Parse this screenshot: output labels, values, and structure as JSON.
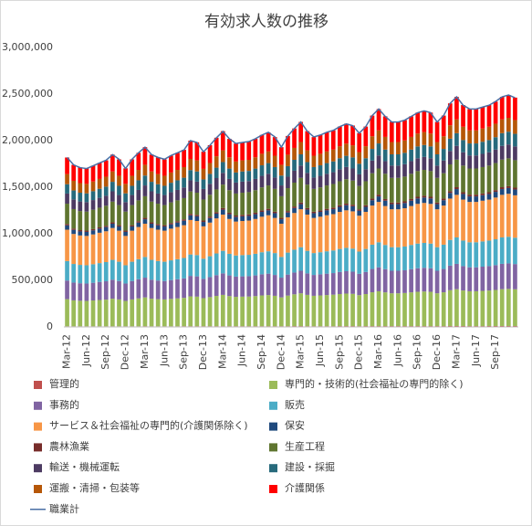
{
  "chart_data": {
    "type": "bar",
    "stacked": true,
    "title": "有効求人数の推移",
    "categories": [
      "Mar-12",
      null,
      null,
      "Jun-12",
      null,
      null,
      "Sep-12",
      null,
      null,
      "Dec-12",
      null,
      null,
      "Mar-13",
      null,
      null,
      "Jun-13",
      null,
      null,
      "Sep-13",
      null,
      null,
      "Dec-13",
      null,
      null,
      "Mar-14",
      null,
      null,
      "Jun-14",
      null,
      null,
      "Sep-14",
      null,
      null,
      "Dec-14",
      null,
      null,
      "Mar-15",
      null,
      null,
      "Jun-15",
      null,
      null,
      "Sep-15",
      null,
      null,
      "Dec-15",
      null,
      null,
      "Mar-16",
      null,
      null,
      "Jun-16",
      null,
      null,
      "Sep-16",
      null,
      null,
      "Dec-16",
      null,
      null,
      "Mar-17",
      null,
      null,
      "Jun-17",
      null,
      null,
      "Sep-17",
      null,
      null,
      null
    ],
    "ylim": [
      0,
      3000000
    ],
    "yticks": [
      {
        "value": 0,
        "label": "0"
      },
      {
        "value": 500000,
        "label": "500,000"
      },
      {
        "value": 1000000,
        "label": "1,000,000"
      },
      {
        "value": 1500000,
        "label": "1,500,000"
      },
      {
        "value": 2000000,
        "label": "2,000,000"
      },
      {
        "value": 2500000,
        "label": "2,500,000"
      },
      {
        "value": 3000000,
        "label": "3,000,000"
      }
    ],
    "grid": false,
    "series": [
      {
        "name": "管理的",
        "color": "#c0504d",
        "values": [
          7000,
          7000,
          7000,
          7000,
          7000,
          7000,
          7000,
          7000,
          7000,
          7000,
          7000,
          7000,
          8000,
          7000,
          7000,
          7000,
          7000,
          7000,
          8000,
          8000,
          8000,
          8000,
          8000,
          8000,
          8000,
          8000,
          8000,
          8000,
          8000,
          8000,
          8000,
          8000,
          8000,
          8000,
          8000,
          9000,
          9000,
          8000,
          8000,
          8000,
          8000,
          8000,
          9000,
          9000,
          9000,
          8000,
          9000,
          9000,
          9000,
          9000,
          9000,
          9000,
          9000,
          9000,
          9000,
          9000,
          9000,
          9000,
          9000,
          10000,
          10000,
          10000,
          9000,
          9000,
          9000,
          10000,
          10000,
          10000,
          10000,
          10000
        ]
      },
      {
        "name": "専門的・技術的(社会福祉の専門的除く)",
        "color": "#9bbb59",
        "values": [
          291000,
          278000,
          274000,
          272000,
          277000,
          282000,
          286000,
          296000,
          288000,
          272000,
          288000,
          299000,
          309000,
          296000,
          291000,
          288000,
          294000,
          299000,
          304000,
          320000,
          317000,
          301000,
          312000,
          325000,
          336000,
          323000,
          315000,
          317000,
          318000,
          323000,
          330000,
          334000,
          326000,
          309000,
          328000,
          341000,
          352000,
          336000,
          326000,
          330000,
          334000,
          338000,
          344000,
          349000,
          346000,
          333000,
          344000,
          363000,
          374000,
          362000,
          352000,
          352000,
          355000,
          362000,
          368000,
          371000,
          368000,
          352000,
          363000,
          384000,
          395000,
          381000,
          374000,
          374000,
          378000,
          381000,
          387000,
          395000,
          398000,
          394000
        ]
      },
      {
        "name": "事務的",
        "color": "#8064a2",
        "values": [
          200000,
          191000,
          188000,
          187000,
          190000,
          194000,
          197000,
          204000,
          198000,
          187000,
          198000,
          206000,
          212000,
          204000,
          200000,
          198000,
          202000,
          206000,
          209000,
          220000,
          218000,
          207000,
          215000,
          223000,
          231000,
          222000,
          217000,
          218000,
          219000,
          222000,
          227000,
          230000,
          224000,
          212000,
          226000,
          234000,
          242000,
          231000,
          224000,
          227000,
          230000,
          232000,
          237000,
          240000,
          238000,
          229000,
          237000,
          250000,
          257000,
          249000,
          242000,
          242000,
          244000,
          249000,
          253000,
          255000,
          253000,
          242000,
          250000,
          264000,
          272000,
          262000,
          257000,
          257000,
          260000,
          262000,
          266000,
          272000,
          274000,
          271000
        ]
      },
      {
        "name": "販売",
        "color": "#4bacc6",
        "values": [
          209000,
          200000,
          197000,
          196000,
          199000,
          202000,
          206000,
          213000,
          207000,
          196000,
          207000,
          215000,
          222000,
          213000,
          209000,
          207000,
          212000,
          215000,
          219000,
          230000,
          228000,
          216000,
          224000,
          233000,
          242000,
          232000,
          227000,
          228000,
          229000,
          232000,
          237000,
          240000,
          235000,
          222000,
          236000,
          245000,
          253000,
          242000,
          235000,
          237000,
          240000,
          243000,
          247000,
          251000,
          248000,
          239000,
          247000,
          261000,
          269000,
          260000,
          253000,
          253000,
          255000,
          260000,
          265000,
          267000,
          265000,
          253000,
          261000,
          276000,
          284000,
          274000,
          269000,
          269000,
          271000,
          274000,
          278000,
          284000,
          286000,
          283000
        ]
      },
      {
        "name": "サービス＆社会福祉の専門的(介護関係除く)",
        "color": "#f79646",
        "values": [
          337000,
          322000,
          316000,
          315000,
          320000,
          326000,
          331000,
          342000,
          333000,
          315000,
          333000,
          346000,
          357000,
          342000,
          337000,
          333000,
          340000,
          346000,
          352000,
          370000,
          366000,
          348000,
          361000,
          376000,
          389000,
          374000,
          364000,
          366000,
          368000,
          374000,
          381000,
          387000,
          377000,
          357000,
          379000,
          394000,
          407000,
          389000,
          377000,
          381000,
          387000,
          390000,
          398000,
          403000,
          400000,
          385000,
          398000,
          420000,
          433000,
          418000,
          407000,
          407000,
          411000,
          418000,
          426000,
          429000,
          426000,
          407000,
          420000,
          444000,
          457000,
          440000,
          433000,
          433000,
          437000,
          440000,
          448000,
          457000,
          461000,
          455000
        ]
      },
      {
        "name": "保安",
        "color": "#1f497d",
        "values": [
          46000,
          44000,
          43000,
          43000,
          43000,
          44000,
          45000,
          46000,
          45000,
          43000,
          45000,
          47000,
          48000,
          46000,
          46000,
          45000,
          46000,
          47000,
          48000,
          50000,
          50000,
          47000,
          49000,
          51000,
          53000,
          51000,
          49000,
          50000,
          50000,
          51000,
          52000,
          52000,
          51000,
          48000,
          51000,
          53000,
          55000,
          53000,
          51000,
          52000,
          52000,
          53000,
          54000,
          55000,
          54000,
          52000,
          54000,
          57000,
          59000,
          57000,
          55000,
          55000,
          56000,
          57000,
          58000,
          58000,
          58000,
          55000,
          57000,
          60000,
          62000,
          60000,
          59000,
          59000,
          59000,
          60000,
          61000,
          62000,
          62000,
          62000
        ]
      },
      {
        "name": "農林漁業",
        "color": "#772c2a",
        "values": [
          15000,
          14000,
          14000,
          14000,
          14000,
          14000,
          14000,
          15000,
          14000,
          14000,
          14000,
          15000,
          15000,
          15000,
          15000,
          14000,
          15000,
          15000,
          15000,
          16000,
          16000,
          15000,
          16000,
          16000,
          17000,
          16000,
          16000,
          16000,
          16000,
          16000,
          16000,
          17000,
          16000,
          15000,
          16000,
          17000,
          18000,
          17000,
          16000,
          16000,
          17000,
          17000,
          17000,
          17000,
          17000,
          17000,
          17000,
          18000,
          19000,
          18000,
          18000,
          18000,
          18000,
          18000,
          18000,
          19000,
          18000,
          18000,
          18000,
          19000,
          20000,
          19000,
          19000,
          19000,
          19000,
          19000,
          19000,
          20000,
          20000,
          20000
        ]
      },
      {
        "name": "生産工程",
        "color": "#5f7530",
        "values": [
          218000,
          209000,
          205000,
          204000,
          208000,
          211000,
          215000,
          222000,
          216000,
          204000,
          216000,
          224000,
          232000,
          222000,
          218000,
          216000,
          221000,
          224000,
          228000,
          240000,
          238000,
          226000,
          234000,
          244000,
          252000,
          242000,
          236000,
          238000,
          239000,
          242000,
          247000,
          251000,
          245000,
          232000,
          246000,
          256000,
          264000,
          252000,
          245000,
          247000,
          251000,
          253000,
          258000,
          262000,
          259000,
          250000,
          258000,
          272000,
          281000,
          271000,
          264000,
          264000,
          266000,
          271000,
          276000,
          278000,
          276000,
          264000,
          272000,
          288000,
          296000,
          286000,
          281000,
          281000,
          283000,
          286000,
          290000,
          296000,
          299000,
          295000
        ]
      },
      {
        "name": "輸送・機械運転",
        "color": "#4d3b62",
        "values": [
          109000,
          104000,
          103000,
          102000,
          104000,
          106000,
          107000,
          111000,
          108000,
          102000,
          108000,
          112000,
          116000,
          111000,
          109000,
          108000,
          110000,
          112000,
          114000,
          120000,
          119000,
          113000,
          117000,
          122000,
          126000,
          121000,
          118000,
          119000,
          119000,
          121000,
          124000,
          125000,
          122000,
          116000,
          123000,
          128000,
          132000,
          126000,
          122000,
          124000,
          125000,
          127000,
          129000,
          131000,
          130000,
          125000,
          129000,
          136000,
          140000,
          136000,
          132000,
          132000,
          133000,
          136000,
          138000,
          139000,
          138000,
          132000,
          136000,
          144000,
          148000,
          143000,
          140000,
          140000,
          142000,
          143000,
          145000,
          148000,
          149000,
          148000
        ]
      },
      {
        "name": "建設・採掘",
        "color": "#276a7c",
        "values": [
          100000,
          96000,
          94000,
          94000,
          95000,
          97000,
          98000,
          102000,
          99000,
          94000,
          99000,
          103000,
          106000,
          102000,
          100000,
          99000,
          101000,
          103000,
          105000,
          110000,
          109000,
          103000,
          107000,
          112000,
          116000,
          111000,
          108000,
          109000,
          109000,
          111000,
          113000,
          115000,
          112000,
          106000,
          113000,
          117000,
          121000,
          116000,
          112000,
          113000,
          115000,
          116000,
          118000,
          120000,
          119000,
          114000,
          118000,
          125000,
          129000,
          124000,
          121000,
          121000,
          122000,
          124000,
          127000,
          128000,
          127000,
          121000,
          125000,
          132000,
          136000,
          131000,
          129000,
          129000,
          130000,
          131000,
          133000,
          136000,
          137000,
          135000
        ]
      },
      {
        "name": "運搬・清掃・包装等",
        "color": "#b65708",
        "values": [
          109000,
          104000,
          103000,
          102000,
          104000,
          106000,
          107000,
          111000,
          108000,
          102000,
          108000,
          112000,
          116000,
          111000,
          109000,
          108000,
          110000,
          112000,
          114000,
          120000,
          119000,
          113000,
          117000,
          122000,
          126000,
          121000,
          118000,
          119000,
          119000,
          121000,
          124000,
          125000,
          122000,
          116000,
          123000,
          128000,
          132000,
          126000,
          122000,
          124000,
          125000,
          127000,
          129000,
          131000,
          130000,
          125000,
          129000,
          136000,
          140000,
          136000,
          132000,
          132000,
          133000,
          136000,
          138000,
          139000,
          138000,
          132000,
          136000,
          144000,
          148000,
          143000,
          140000,
          140000,
          142000,
          143000,
          145000,
          148000,
          149000,
          148000
        ]
      },
      {
        "name": "介護関係",
        "color": "#ff0000",
        "values": [
          178000,
          171000,
          168000,
          167000,
          170000,
          172000,
          175000,
          181000,
          176000,
          167000,
          176000,
          183000,
          189000,
          181000,
          178000,
          176000,
          180000,
          183000,
          186000,
          196000,
          194000,
          184000,
          191000,
          199000,
          206000,
          198000,
          193000,
          194000,
          195000,
          198000,
          202000,
          205000,
          200000,
          189000,
          201000,
          209000,
          216000,
          206000,
          200000,
          202000,
          205000,
          207000,
          211000,
          214000,
          212000,
          204000,
          211000,
          222000,
          229000,
          221000,
          216000,
          216000,
          218000,
          221000,
          225000,
          227000,
          225000,
          216000,
          222000,
          235000,
          242000,
          233000,
          229000,
          229000,
          231000,
          233000,
          237000,
          242000,
          244000,
          241000
        ]
      }
    ],
    "line": {
      "name": "職業計",
      "color": "#4a6fa5",
      "values": [
        1820000,
        1740000,
        1710000,
        1700000,
        1730000,
        1760000,
        1790000,
        1850000,
        1800000,
        1700000,
        1800000,
        1870000,
        1930000,
        1850000,
        1820000,
        1800000,
        1840000,
        1870000,
        1900000,
        2000000,
        1980000,
        1880000,
        1950000,
        2030000,
        2100000,
        2020000,
        1970000,
        1980000,
        1990000,
        2020000,
        2060000,
        2090000,
        2040000,
        1930000,
        2050000,
        2130000,
        2200000,
        2100000,
        2040000,
        2060000,
        2090000,
        2110000,
        2150000,
        2180000,
        2160000,
        2080000,
        2150000,
        2270000,
        2340000,
        2260000,
        2200000,
        2200000,
        2220000,
        2260000,
        2300000,
        2320000,
        2300000,
        2200000,
        2270000,
        2400000,
        2470000,
        2380000,
        2340000,
        2340000,
        2360000,
        2380000,
        2420000,
        2470000,
        2490000,
        2460000
      ]
    }
  }
}
